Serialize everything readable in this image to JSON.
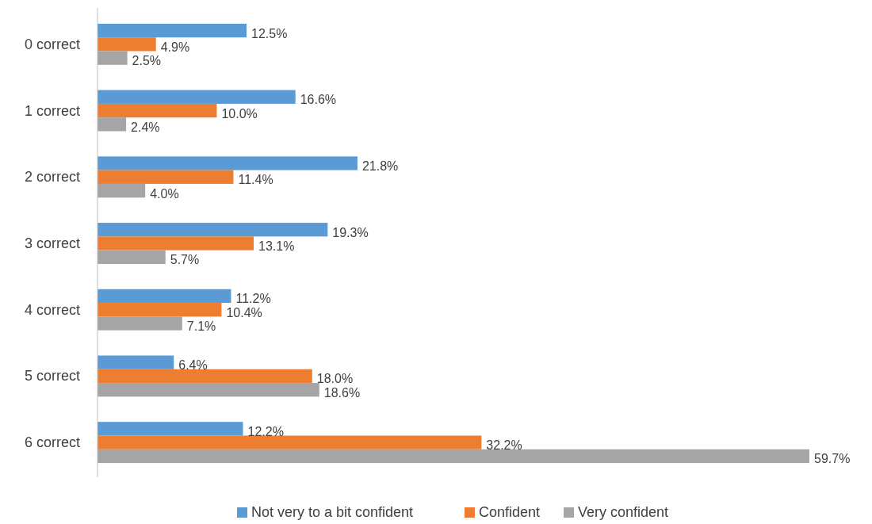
{
  "chart_data": {
    "type": "bar",
    "orientation": "horizontal",
    "categories": [
      "0 correct",
      "1 correct",
      "2 correct",
      "3 correct",
      "4 correct",
      "5 correct",
      "6 correct"
    ],
    "series": [
      {
        "name": "Not very to a bit confident",
        "color": "#5b9bd5",
        "values": [
          12.5,
          16.6,
          21.8,
          19.3,
          11.2,
          6.4,
          12.2
        ],
        "value_labels": [
          "12.5%",
          "16.6%",
          "21.8%",
          "19.3%",
          "11.2%",
          "6.4%",
          "12.2%"
        ]
      },
      {
        "name": "Confident",
        "color": "#ed7d31",
        "values": [
          4.9,
          10.0,
          11.4,
          13.1,
          10.4,
          18.0,
          32.2
        ],
        "value_labels": [
          "4.9%",
          "10.0%",
          "11.4%",
          "13.1%",
          "10.4%",
          "18.0%",
          "32.2%"
        ]
      },
      {
        "name": "Very confident",
        "color": "#a5a5a5",
        "values": [
          2.5,
          2.4,
          4.0,
          5.7,
          7.1,
          18.6,
          59.7
        ],
        "value_labels": [
          "2.5%",
          "2.4%",
          "4.0%",
          "5.7%",
          "7.1%",
          "18.6%",
          "59.7%"
        ]
      }
    ],
    "legend": "bottom",
    "grid": false,
    "tick_labels": "y"
  }
}
